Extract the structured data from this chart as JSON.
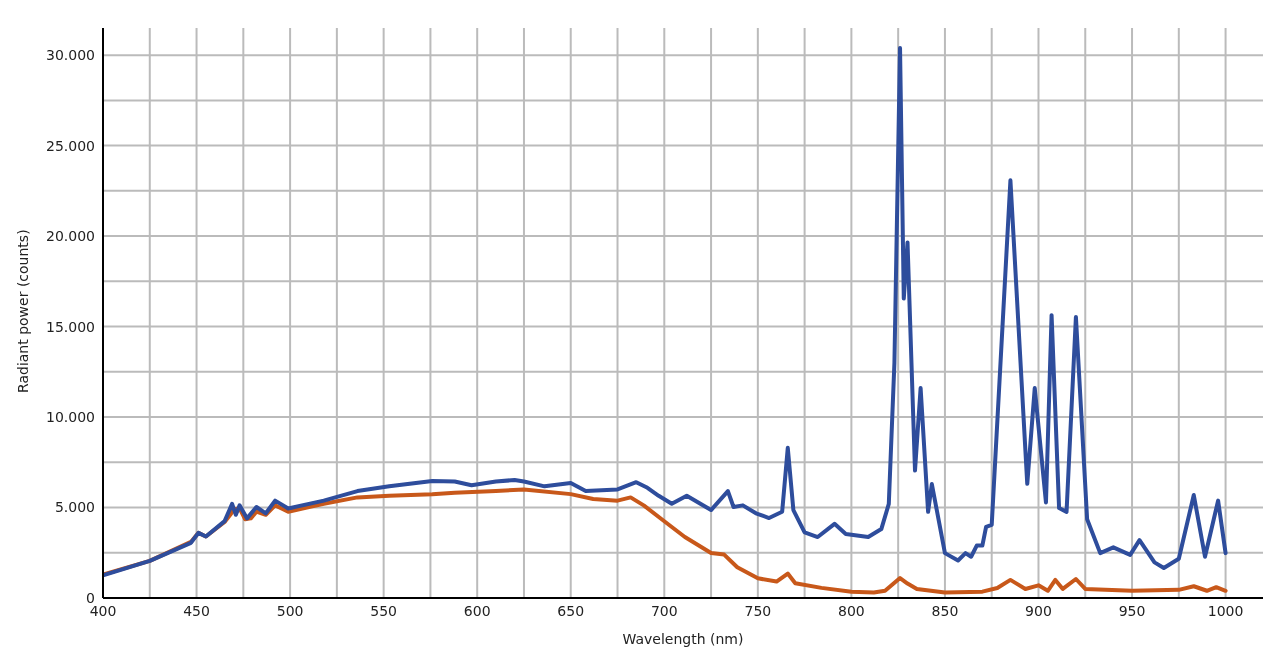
{
  "chart_data": {
    "type": "line",
    "xlabel": "Wavelength (nm)",
    "ylabel": "Radiant power (counts)",
    "xlim": [
      400,
      1020
    ],
    "ylim": [
      0,
      31500
    ],
    "xticks": [
      400,
      {
        "value": 425,
        "label": null
      },
      450,
      {
        "value": 475,
        "label": null
      },
      500,
      {
        "value": 525,
        "label": null
      },
      550,
      {
        "value": 575,
        "label": null
      },
      600,
      {
        "value": 625,
        "label": null
      },
      650,
      {
        "value": 675,
        "label": null
      },
      700,
      {
        "value": 725,
        "label": null
      },
      750,
      {
        "value": 775,
        "label": null
      },
      800,
      {
        "value": 825,
        "label": null
      },
      850,
      {
        "value": 875,
        "label": null
      },
      900,
      {
        "value": 925,
        "label": null
      },
      950,
      {
        "value": 975,
        "label": null
      },
      1000
    ],
    "yticks": [
      0,
      {
        "value": 2500,
        "label": null
      },
      {
        "value": 5000,
        "label": "5.000"
      },
      {
        "value": 7500,
        "label": null
      },
      {
        "value": 10000,
        "label": "10.000"
      },
      {
        "value": 12500,
        "label": null
      },
      {
        "value": 15000,
        "label": "15.000"
      },
      {
        "value": 17500,
        "label": null
      },
      {
        "value": 20000,
        "label": "20.000"
      },
      {
        "value": 22500,
        "label": null
      },
      {
        "value": 25000,
        "label": "25.000"
      },
      {
        "value": 27500,
        "label": null
      },
      {
        "value": 30000,
        "label": "30.000"
      }
    ],
    "grid": true,
    "marker": "none",
    "line_style": "solid",
    "series": [
      {
        "color": "#c8581a",
        "x": [
          400,
          425,
          447,
          451,
          455,
          465,
          468,
          470,
          473,
          476,
          479,
          482,
          487,
          492,
          499,
          518,
          536,
          553,
          576,
          588,
          610,
          625,
          650,
          662,
          675,
          682,
          689,
          700,
          711,
          725,
          732,
          739,
          750,
          760,
          766,
          770,
          784,
          800,
          812,
          818,
          826,
          830,
          835,
          850,
          870,
          878,
          885,
          893,
          900,
          905,
          909,
          913,
          920,
          925,
          950,
          975,
          983,
          990,
          995,
          1000
        ],
        "values": [
          1300,
          2050,
          3100,
          3600,
          3400,
          4200,
          4600,
          4900,
          4950,
          4350,
          4400,
          4770,
          4600,
          5120,
          4770,
          5210,
          5560,
          5650,
          5740,
          5820,
          5910,
          6000,
          5740,
          5470,
          5380,
          5560,
          5120,
          4240,
          3370,
          2490,
          2400,
          1700,
          1090,
          910,
          1350,
          820,
          560,
          350,
          300,
          400,
          1100,
          800,
          500,
          300,
          350,
          550,
          1000,
          500,
          700,
          400,
          1000,
          500,
          1050,
          500,
          400,
          450,
          650,
          400,
          600,
          400
        ]
      },
      {
        "color": "#2e4d9c",
        "x": [
          400,
          425,
          447,
          451,
          455,
          465,
          469,
          471,
          473,
          477,
          482,
          487,
          492,
          499,
          518,
          536,
          553,
          576,
          588,
          597,
          610,
          620,
          625,
          636,
          650,
          658,
          675,
          685,
          691,
          697,
          704,
          712,
          725,
          734,
          737,
          742,
          749,
          756,
          763,
          766,
          769,
          775,
          782,
          791,
          797,
          809,
          816,
          820,
          823,
          826,
          828,
          830,
          834,
          837,
          841,
          843,
          850,
          857,
          861,
          864,
          867,
          870,
          872,
          875,
          885,
          894,
          898,
          904,
          907,
          911,
          915,
          920,
          926,
          933,
          940,
          949,
          954,
          962,
          967,
          975,
          983,
          989,
          996,
          1000
        ],
        "values": [
          1250,
          2050,
          3050,
          3600,
          3400,
          4250,
          5200,
          4600,
          5120,
          4400,
          5030,
          4680,
          5380,
          4950,
          5380,
          5910,
          6170,
          6470,
          6440,
          6230,
          6440,
          6520,
          6440,
          6170,
          6350,
          5910,
          6000,
          6400,
          6090,
          5650,
          5210,
          5650,
          4860,
          5910,
          5030,
          5120,
          4680,
          4420,
          4770,
          8300,
          4860,
          3630,
          3370,
          4100,
          3540,
          3370,
          3810,
          5200,
          13000,
          30400,
          16550,
          19650,
          7040,
          11600,
          4760,
          6300,
          2480,
          2070,
          2480,
          2280,
          2900,
          2900,
          3930,
          4040,
          23080,
          6310,
          11600,
          5280,
          15630,
          4970,
          4760,
          15530,
          4350,
          2480,
          2800,
          2380,
          3200,
          1970,
          1660,
          2170,
          5690,
          2280,
          5380,
          2480
        ]
      }
    ]
  }
}
